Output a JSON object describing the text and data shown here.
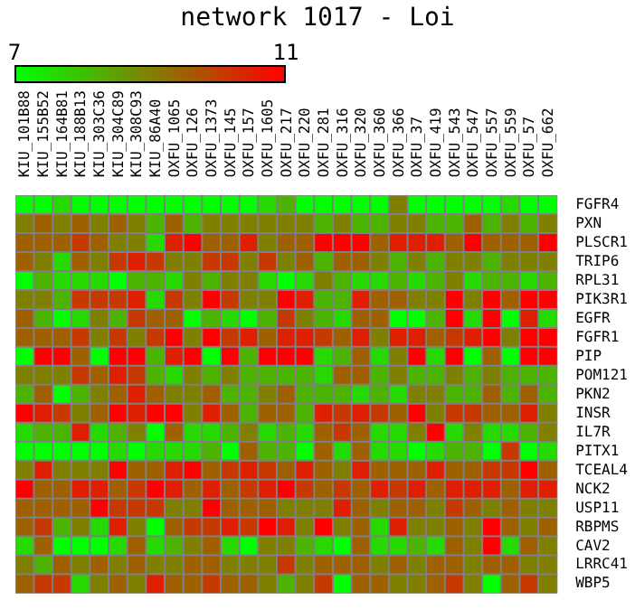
{
  "chart_data": {
    "type": "heatmap",
    "title": "network 1017 - Loi",
    "categories": [
      "KIU_101B88",
      "KIU_155B52",
      "KIU_164B81",
      "KIU_188B13",
      "KIU_303C36",
      "KIU_304C89",
      "KIU_308C93",
      "KIU_86A40",
      "OXFU_1065",
      "OXFU_126",
      "OXFU_1373",
      "OXFU_145",
      "OXFU_157",
      "OXFU_1605",
      "OXFU_217",
      "OXFU_220",
      "OXFU_281",
      "OXFU_316",
      "OXFU_320",
      "OXFU_360",
      "OXFU_366",
      "OXFU_37",
      "OXFU_419",
      "OXFU_543",
      "OXFU_547",
      "OXFU_557",
      "OXFU_559",
      "OXFU_57",
      "OXFU_662"
    ],
    "y_categories": [
      "FGFR4",
      "PXN",
      "PLSCR1",
      "TRIP6",
      "RPL31",
      "PIK3R1",
      "EGFR",
      "FGFR1",
      "PIP",
      "POM121",
      "PKN2",
      "INSR",
      "IL7R",
      "PITX1",
      "TCEAL4",
      "NCK2",
      "USP11",
      "RBPMS",
      "CAV2",
      "LRRC41",
      "WBP5"
    ],
    "cells": [
      [
        7,
        7,
        7.6,
        7,
        7,
        7,
        7,
        7,
        7,
        7,
        7,
        7,
        7,
        7.6,
        8.2,
        7,
        7,
        7,
        7,
        7,
        9,
        7,
        7,
        7,
        7,
        7,
        7.6,
        7,
        7
      ],
      [
        9,
        9.5,
        9,
        9.5,
        9,
        9.5,
        9,
        8.2,
        9.5,
        8.2,
        9,
        9,
        9,
        9,
        9,
        9,
        8.2,
        9,
        8.2,
        8.2,
        9,
        9,
        8.2,
        8.2,
        9.5,
        8.2,
        9,
        8.2,
        9
      ],
      [
        9.5,
        9.5,
        9.5,
        10.1,
        9.5,
        9,
        9,
        7.6,
        10.5,
        11,
        9.5,
        9.5,
        10.5,
        9,
        9.5,
        9.5,
        11,
        11,
        11,
        9.5,
        10.5,
        10.5,
        10.5,
        9.5,
        11,
        9.5,
        9.5,
        9.5,
        11
      ],
      [
        9.5,
        9,
        7.6,
        9.5,
        9,
        10.1,
        10.5,
        10.1,
        9,
        9,
        10.1,
        10.1,
        9,
        10.1,
        9,
        9.5,
        8.2,
        9.5,
        9.5,
        9,
        8.2,
        9,
        8.2,
        9,
        9,
        8.2,
        9,
        9,
        9
      ],
      [
        7,
        8.2,
        7.6,
        7.6,
        7.6,
        7,
        8.2,
        8.2,
        7.6,
        9,
        8.2,
        9,
        9,
        7.6,
        7,
        7.6,
        9,
        8.2,
        7.6,
        7.6,
        8.2,
        7.6,
        8.2,
        9,
        7.6,
        8.2,
        8.2,
        7.6,
        8.2
      ],
      [
        9,
        9,
        8.2,
        10.1,
        10.1,
        10.1,
        10.5,
        7.6,
        10.1,
        9,
        11,
        10.1,
        9,
        9,
        11,
        10.5,
        8.2,
        8.2,
        10.5,
        9.5,
        9.5,
        9,
        9,
        11,
        9,
        11,
        9.5,
        11,
        11
      ],
      [
        9.5,
        8.2,
        7,
        7.6,
        9,
        8.2,
        10.1,
        9.5,
        9.5,
        7,
        8.2,
        7.6,
        7,
        8.2,
        10.1,
        9,
        8.2,
        7.6,
        9.5,
        9.5,
        7,
        7,
        8.2,
        11,
        7.6,
        11,
        7,
        10.5,
        7.6
      ],
      [
        9.5,
        9.5,
        9.5,
        10.1,
        9,
        10.1,
        9,
        10.1,
        11,
        9,
        11,
        10.1,
        10.5,
        9.5,
        10.5,
        10.5,
        10.1,
        9.5,
        10.5,
        9,
        10.5,
        10.5,
        9.5,
        10.1,
        10.5,
        11,
        9,
        11,
        11
      ],
      [
        7,
        11,
        11,
        9.5,
        7,
        11,
        11,
        8.2,
        10.5,
        11,
        7,
        11,
        8.2,
        11,
        11,
        11,
        7.6,
        8.2,
        9.5,
        7.6,
        9,
        11,
        7.6,
        11,
        7,
        9.5,
        7,
        11,
        11
      ],
      [
        9,
        9,
        9,
        10.1,
        9.5,
        10.5,
        10.1,
        8.2,
        7.6,
        9,
        8.2,
        9,
        8.2,
        8.2,
        8.2,
        8.2,
        7.6,
        9.5,
        9.5,
        8.2,
        9,
        8.2,
        8.2,
        9,
        8.2,
        9,
        8.2,
        8.2,
        8.2
      ],
      [
        8.2,
        9.5,
        7,
        8.2,
        9,
        9.5,
        10.5,
        9.5,
        9,
        9,
        9.5,
        8.2,
        8.2,
        9,
        9.5,
        8.2,
        8.2,
        8.2,
        7.6,
        8.2,
        7.6,
        9,
        9,
        8.2,
        8.2,
        9.5,
        8.2,
        9.5,
        8.2
      ],
      [
        11,
        10.5,
        10.1,
        9,
        9.5,
        11,
        10.5,
        11,
        11,
        9,
        10.5,
        9.5,
        8.2,
        9.5,
        9.5,
        8.2,
        10.5,
        10.1,
        10.5,
        10.1,
        9.5,
        11,
        9,
        10.1,
        10.1,
        9.5,
        9.5,
        10.5,
        9
      ],
      [
        7.6,
        8.2,
        8.2,
        10.5,
        7.6,
        8.2,
        9,
        7,
        9.5,
        7.6,
        7.6,
        8.2,
        9,
        7.6,
        8.2,
        7.6,
        9.5,
        10.1,
        9.5,
        7.6,
        7.6,
        9,
        11,
        7.6,
        9,
        7.6,
        7.6,
        8.2,
        9
      ],
      [
        7,
        7,
        7,
        7,
        7,
        7.6,
        7,
        7.6,
        7.6,
        7.6,
        8.2,
        7,
        9.5,
        8.2,
        8.2,
        7,
        9.5,
        7.6,
        9.5,
        7.6,
        7.6,
        7,
        7.6,
        8.2,
        8.2,
        7,
        10.1,
        7,
        7.6
      ],
      [
        9,
        10.5,
        9,
        9,
        9,
        11,
        9.5,
        9.5,
        10.5,
        11,
        9.5,
        10.1,
        10.5,
        10.1,
        9.5,
        10.5,
        9.5,
        9,
        10.5,
        9.5,
        9.5,
        9.5,
        10.5,
        9.5,
        9.5,
        10.1,
        10.1,
        11,
        9.5
      ],
      [
        11,
        9.5,
        9.5,
        10.5,
        10.5,
        9.5,
        10.1,
        11,
        10.5,
        9.5,
        10.5,
        9.5,
        10.1,
        10.5,
        11,
        10.1,
        9.5,
        10.1,
        9.5,
        10.5,
        10.1,
        10.5,
        9.5,
        10.5,
        10.5,
        10.5,
        9.5,
        10.5,
        10.5
      ],
      [
        9.5,
        9.5,
        9.5,
        9.5,
        11,
        10.1,
        10.1,
        10.1,
        9,
        9,
        11,
        9.5,
        9.5,
        9.5,
        9,
        9,
        9,
        10.5,
        9.5,
        9,
        9.5,
        9.5,
        9,
        10.1,
        9.5,
        9,
        9.5,
        9,
        9
      ],
      [
        9.5,
        10.1,
        8.2,
        9,
        7.6,
        10.5,
        9,
        7,
        9.5,
        10.1,
        10.1,
        10.5,
        10.1,
        11,
        10.5,
        9,
        11,
        9,
        9.5,
        7.6,
        10.5,
        9,
        9,
        9.5,
        9,
        11,
        9.5,
        9,
        9.5
      ],
      [
        7.6,
        9.5,
        7,
        7,
        7,
        7.6,
        9.5,
        7.6,
        8.2,
        9,
        9.5,
        7.6,
        7,
        9,
        9,
        8.2,
        7.6,
        7,
        9.5,
        7.6,
        7.6,
        8.2,
        7.6,
        9.5,
        9,
        11,
        7.6,
        9.5,
        9
      ],
      [
        9,
        8.2,
        9.5,
        9,
        9.5,
        9,
        9.5,
        9,
        9,
        9.5,
        9.5,
        9,
        9,
        9,
        10.1,
        9,
        9.5,
        9.5,
        9.5,
        9,
        9.5,
        9,
        9.5,
        9.5,
        9,
        9.5,
        9.5,
        9,
        9
      ],
      [
        9.5,
        10.1,
        10.1,
        7.6,
        9,
        9.5,
        9,
        10.5,
        9.5,
        9.5,
        10.1,
        9.5,
        9.5,
        9,
        8.2,
        9,
        10.1,
        7,
        9.5,
        9.5,
        9,
        9,
        9.5,
        10.1,
        9,
        7,
        9.5,
        10.1,
        9
      ]
    ],
    "clim": [
      7,
      11
    ],
    "cticks": [
      7,
      11
    ]
  }
}
